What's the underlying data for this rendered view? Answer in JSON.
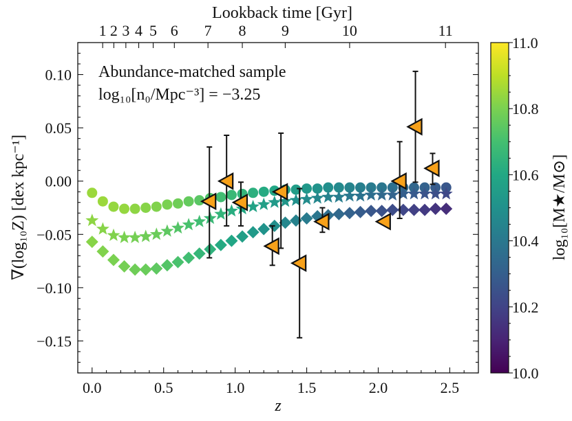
{
  "chart_data": {
    "type": "scatter",
    "xlabel": "z",
    "ylabel": "∇(log₁₀Z) [dex kpc⁻¹]",
    "top_axis_label": "Lookback time [Gyr]",
    "colorbar_label": "log₁₀[M★/M⊙]",
    "xlim": [
      -0.1,
      2.7
    ],
    "ylim": [
      -0.18,
      0.13
    ],
    "x_ticks": [
      0.0,
      0.5,
      1.0,
      1.5,
      2.0,
      2.5
    ],
    "x_tick_labels": [
      "0.0",
      "0.5",
      "1.0",
      "1.5",
      "2.0",
      "2.5"
    ],
    "y_ticks": [
      0.1,
      0.05,
      0.0,
      -0.05,
      -0.1,
      -0.15
    ],
    "y_tick_labels": [
      "0.10",
      "0.05",
      "0.00",
      "−0.05",
      "−0.10",
      "−0.15"
    ],
    "top_ticks": [
      {
        "label": "1",
        "z": 0.074
      },
      {
        "label": "2",
        "z": 0.152
      },
      {
        "label": "3",
        "z": 0.236
      },
      {
        "label": "4",
        "z": 0.326
      },
      {
        "label": "5",
        "z": 0.427
      },
      {
        "label": "6",
        "z": 0.575
      },
      {
        "label": "7",
        "z": 0.81
      },
      {
        "label": "8",
        "z": 1.05
      },
      {
        "label": "9",
        "z": 1.35
      },
      {
        "label": "10",
        "z": 1.8
      },
      {
        "label": "11",
        "z": 2.47
      }
    ],
    "colorbar": {
      "range": [
        10.0,
        11.0
      ],
      "ticks": [
        10.0,
        10.2,
        10.4,
        10.6,
        10.8,
        11.0
      ],
      "tick_labels": [
        "10.0",
        "10.2",
        "10.4",
        "10.6",
        "10.8",
        "11.0"
      ],
      "colormap": [
        "#440154",
        "#482475",
        "#414487",
        "#355f8d",
        "#2a788e",
        "#21918c",
        "#22a884",
        "#44bf70",
        "#7ad151",
        "#bddf26",
        "#fde725"
      ]
    },
    "annotation": {
      "line1": "Abundance-matched sample",
      "line2": "log₁₀[n₀/Mpc⁻³] = −3.25"
    },
    "series": [
      {
        "name": "circles",
        "marker": "circle",
        "x": [
          0.0,
          0.075,
          0.15,
          0.225,
          0.3,
          0.375,
          0.45,
          0.525,
          0.6,
          0.675,
          0.75,
          0.825,
          0.9,
          0.975,
          1.05,
          1.125,
          1.2,
          1.275,
          1.35,
          1.425,
          1.5,
          1.575,
          1.65,
          1.725,
          1.8,
          1.875,
          1.95,
          2.025,
          2.1,
          2.175,
          2.25,
          2.325,
          2.4,
          2.475
        ],
        "y": [
          -0.011,
          -0.019,
          -0.024,
          -0.026,
          -0.026,
          -0.025,
          -0.024,
          -0.022,
          -0.021,
          -0.019,
          -0.018,
          -0.016,
          -0.015,
          -0.013,
          -0.012,
          -0.011,
          -0.01,
          -0.009,
          -0.008,
          -0.008,
          -0.007,
          -0.007,
          -0.006,
          -0.006,
          -0.006,
          -0.006,
          -0.006,
          -0.006,
          -0.006,
          -0.006,
          -0.006,
          -0.006,
          -0.006,
          -0.006
        ],
        "mass": [
          10.85,
          10.85,
          10.84,
          10.84,
          10.83,
          10.82,
          10.81,
          10.8,
          10.78,
          10.76,
          10.74,
          10.72,
          10.69,
          10.67,
          10.65,
          10.63,
          10.61,
          10.59,
          10.57,
          10.55,
          10.53,
          10.51,
          10.49,
          10.47,
          10.45,
          10.43,
          10.41,
          10.39,
          10.37,
          10.35,
          10.33,
          10.31,
          10.29,
          10.27
        ]
      },
      {
        "name": "stars",
        "marker": "star",
        "x": [
          0.0,
          0.075,
          0.15,
          0.225,
          0.3,
          0.375,
          0.45,
          0.525,
          0.6,
          0.675,
          0.75,
          0.825,
          0.9,
          0.975,
          1.05,
          1.125,
          1.2,
          1.275,
          1.35,
          1.425,
          1.5,
          1.575,
          1.65,
          1.725,
          1.8,
          1.875,
          1.95,
          2.025,
          2.1,
          2.175,
          2.25,
          2.325,
          2.4,
          2.475
        ],
        "y": [
          -0.037,
          -0.045,
          -0.051,
          -0.053,
          -0.053,
          -0.052,
          -0.05,
          -0.047,
          -0.044,
          -0.041,
          -0.038,
          -0.035,
          -0.031,
          -0.028,
          -0.026,
          -0.024,
          -0.022,
          -0.02,
          -0.019,
          -0.018,
          -0.017,
          -0.016,
          -0.015,
          -0.015,
          -0.014,
          -0.014,
          -0.013,
          -0.013,
          -0.013,
          -0.012,
          -0.012,
          -0.012,
          -0.012,
          -0.012
        ],
        "mass": [
          10.83,
          10.82,
          10.81,
          10.8,
          10.79,
          10.78,
          10.77,
          10.75,
          10.73,
          10.71,
          10.69,
          10.67,
          10.65,
          10.62,
          10.6,
          10.58,
          10.56,
          10.54,
          10.52,
          10.5,
          10.48,
          10.46,
          10.44,
          10.42,
          10.4,
          10.38,
          10.36,
          10.34,
          10.32,
          10.3,
          10.28,
          10.26,
          10.24,
          10.22
        ]
      },
      {
        "name": "diamonds",
        "marker": "diamond",
        "x": [
          0.0,
          0.075,
          0.15,
          0.225,
          0.3,
          0.375,
          0.45,
          0.525,
          0.6,
          0.675,
          0.75,
          0.825,
          0.9,
          0.975,
          1.05,
          1.125,
          1.2,
          1.275,
          1.35,
          1.425,
          1.5,
          1.575,
          1.65,
          1.725,
          1.8,
          1.875,
          1.95,
          2.025,
          2.1,
          2.175,
          2.25,
          2.325,
          2.4,
          2.475
        ],
        "y": [
          -0.057,
          -0.066,
          -0.074,
          -0.08,
          -0.083,
          -0.083,
          -0.082,
          -0.079,
          -0.076,
          -0.072,
          -0.068,
          -0.064,
          -0.06,
          -0.056,
          -0.052,
          -0.048,
          -0.045,
          -0.042,
          -0.039,
          -0.037,
          -0.035,
          -0.033,
          -0.032,
          -0.031,
          -0.03,
          -0.029,
          -0.028,
          -0.028,
          -0.027,
          -0.027,
          -0.027,
          -0.027,
          -0.026,
          -0.026
        ],
        "mass": [
          10.82,
          10.81,
          10.8,
          10.79,
          10.78,
          10.77,
          10.75,
          10.73,
          10.71,
          10.69,
          10.66,
          10.64,
          10.61,
          10.59,
          10.56,
          10.54,
          10.51,
          10.49,
          10.46,
          10.44,
          10.41,
          10.39,
          10.36,
          10.34,
          10.31,
          10.29,
          10.27,
          10.25,
          10.23,
          10.21,
          10.19,
          10.17,
          10.15,
          10.13
        ]
      },
      {
        "name": "observations",
        "marker": "triangle-left",
        "color": "#F7A11A",
        "x": [
          0.82,
          0.94,
          1.04,
          1.26,
          1.32,
          1.45,
          1.61,
          2.04,
          2.15,
          2.26,
          2.38
        ],
        "y": [
          -0.019,
          0.0,
          -0.02,
          -0.061,
          -0.01,
          -0.077,
          -0.038,
          -0.038,
          0.0,
          0.051,
          0.012
        ],
        "err_low": [
          -0.072,
          -0.042,
          -0.042,
          -0.079,
          -0.063,
          -0.147,
          -0.048,
          null,
          -0.035,
          -0.001,
          -0.003
        ],
        "err_high": [
          0.032,
          0.043,
          -0.001,
          -0.042,
          0.045,
          -0.007,
          -0.025,
          null,
          0.037,
          0.103,
          0.026
        ]
      }
    ]
  }
}
